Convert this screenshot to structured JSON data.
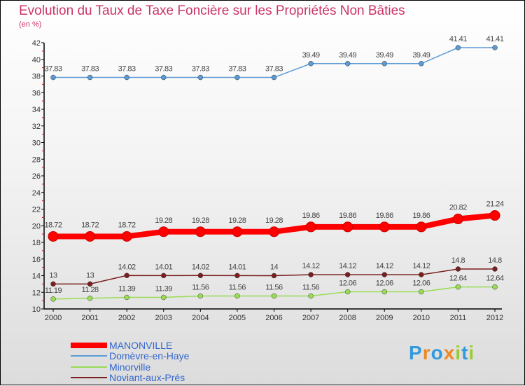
{
  "chart_data": {
    "type": "line",
    "title": "Evolution du Taux de Taxe Foncière sur les Propriétés Non Bâties",
    "subtitle": "(en %)",
    "xlabel": "",
    "ylabel": "",
    "x": [
      "2000",
      "2001",
      "2002",
      "2003",
      "2004",
      "2005",
      "2006",
      "2007",
      "2008",
      "2009",
      "2010",
      "2011",
      "2012"
    ],
    "ylim": [
      10,
      42
    ],
    "yticks": [
      "10",
      "12",
      "14",
      "16",
      "18",
      "20",
      "22",
      "24",
      "26",
      "28",
      "30",
      "32",
      "34",
      "36",
      "38",
      "40",
      "42"
    ],
    "legend_position": "bottom-left",
    "series": [
      {
        "name": "MANONVILLE",
        "color": "#ff0000",
        "values": [
          18.72,
          18.72,
          18.72,
          19.28,
          19.28,
          19.28,
          19.28,
          19.86,
          19.86,
          19.86,
          19.86,
          20.82,
          21.24
        ],
        "labels": [
          "18.72",
          "18.72",
          "18.72",
          "19.28",
          "19.28",
          "19.28",
          "19.28",
          "19.86",
          "19.86",
          "19.86",
          "19.86",
          "20.82",
          "21.24"
        ]
      },
      {
        "name": "Domèvre-en-Haye",
        "color": "#5b9bd5",
        "values": [
          37.83,
          37.83,
          37.83,
          37.83,
          37.83,
          37.83,
          37.83,
          39.49,
          39.49,
          39.49,
          39.49,
          41.41,
          41.41
        ],
        "labels": [
          "37.83",
          "37.83",
          "37.83",
          "37.83",
          "37.83",
          "37.83",
          "37.83",
          "39.49",
          "39.49",
          "39.49",
          "39.49",
          "41.41",
          "41.41"
        ]
      },
      {
        "name": "Minorville",
        "color": "#99dd55",
        "values": [
          11.19,
          11.28,
          11.39,
          11.39,
          11.56,
          11.56,
          11.56,
          11.56,
          12.06,
          12.06,
          12.06,
          12.64,
          12.64
        ],
        "labels": [
          "11.19",
          "11.28",
          "11.39",
          "11.39",
          "11.56",
          "11.56",
          "11.56",
          "11.56",
          "12.06",
          "12.06",
          "12.06",
          "12.64",
          "12.64"
        ]
      },
      {
        "name": "Noviant-aux-Prés",
        "color": "#7a1f1f",
        "values": [
          13,
          13,
          14.02,
          14.01,
          14.02,
          14.01,
          14,
          14.12,
          14.12,
          14.12,
          14.12,
          14.8,
          14.8
        ],
        "labels": [
          "13",
          "13",
          "14.02",
          "14.01",
          "14.02",
          "14.01",
          "14",
          "14.12",
          "14.12",
          "14.12",
          "14.12",
          "14.8",
          "14.8"
        ]
      }
    ]
  },
  "logo": {
    "text": "Proxiti"
  }
}
